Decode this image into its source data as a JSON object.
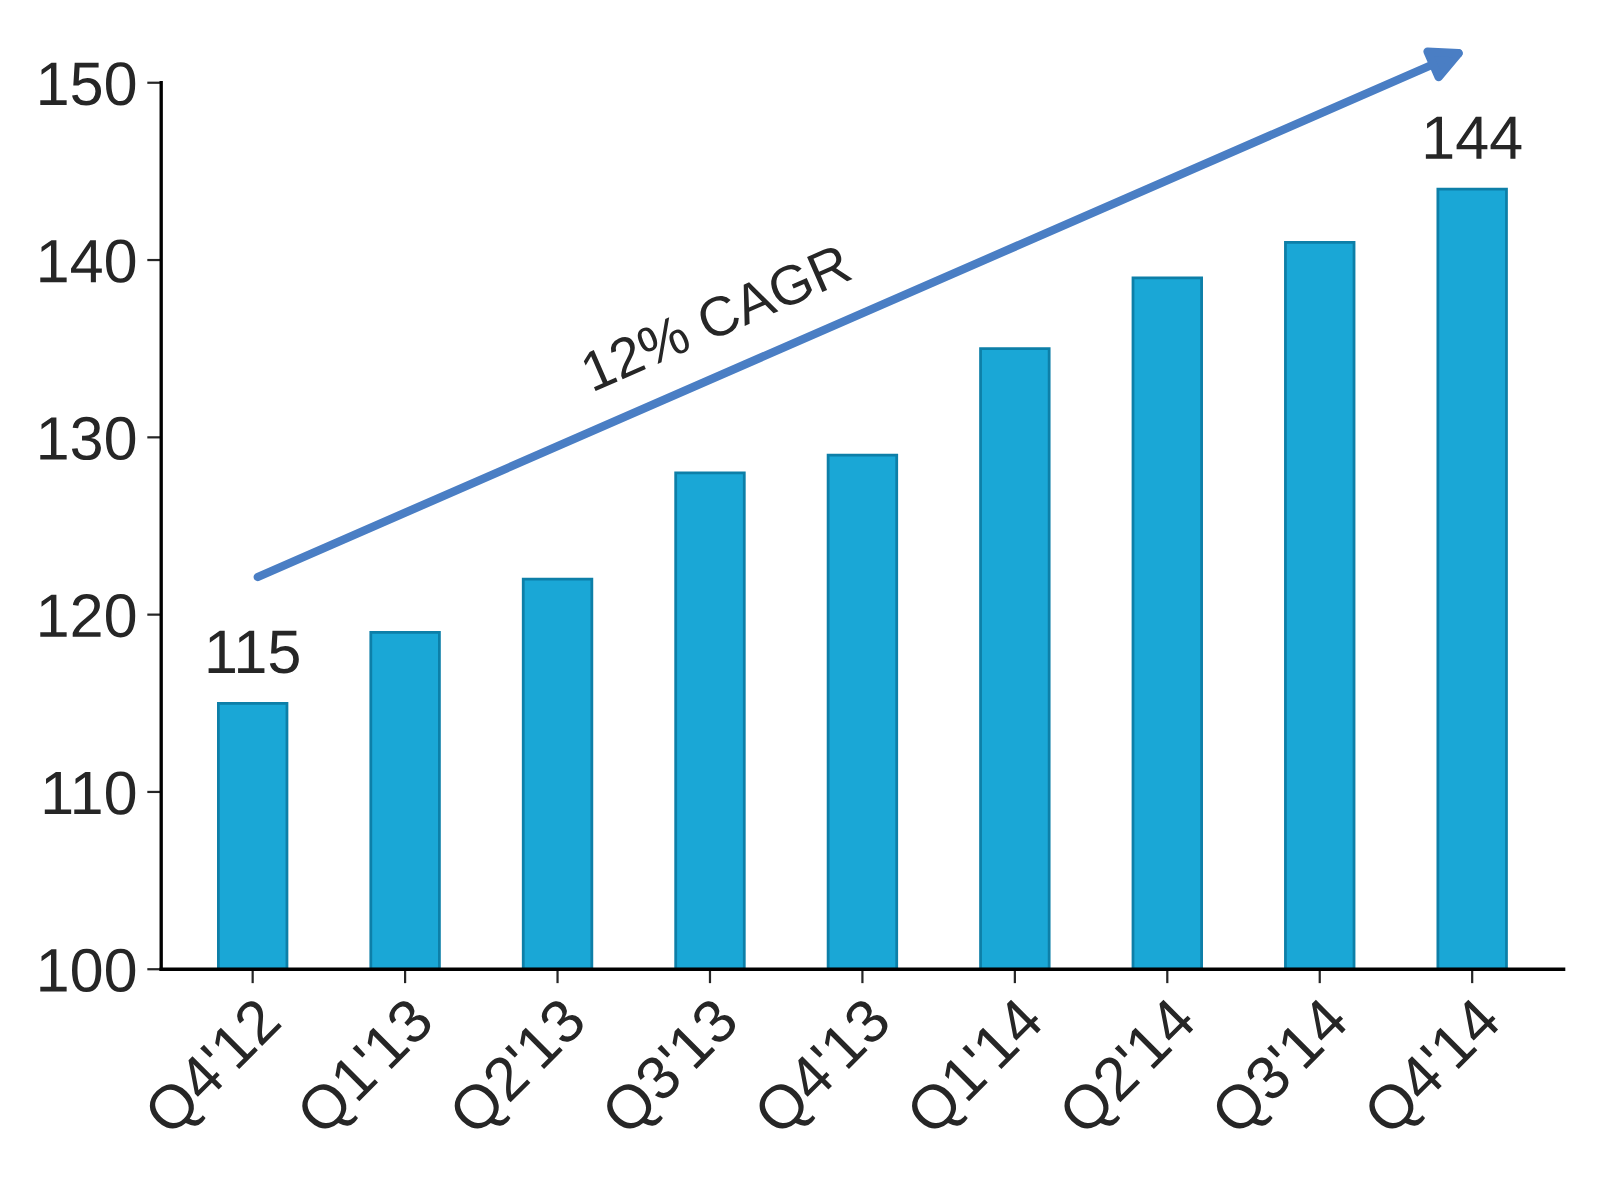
{
  "chart_data": {
    "type": "bar",
    "categories": [
      "Q4'12",
      "Q1'13",
      "Q2'13",
      "Q3'13",
      "Q4'13",
      "Q1'14",
      "Q2'14",
      "Q3'14",
      "Q4'14"
    ],
    "values": [
      115,
      119,
      122,
      128,
      129,
      135,
      139,
      141,
      144
    ],
    "value_labels": [
      "115",
      null,
      null,
      null,
      null,
      null,
      null,
      null,
      "144"
    ],
    "color": "#1aa7d6",
    "ylim": [
      100,
      150
    ],
    "yticks": [
      100,
      110,
      120,
      130,
      140,
      150
    ],
    "annotations": [
      "12% CAGR"
    ],
    "grid": false
  }
}
